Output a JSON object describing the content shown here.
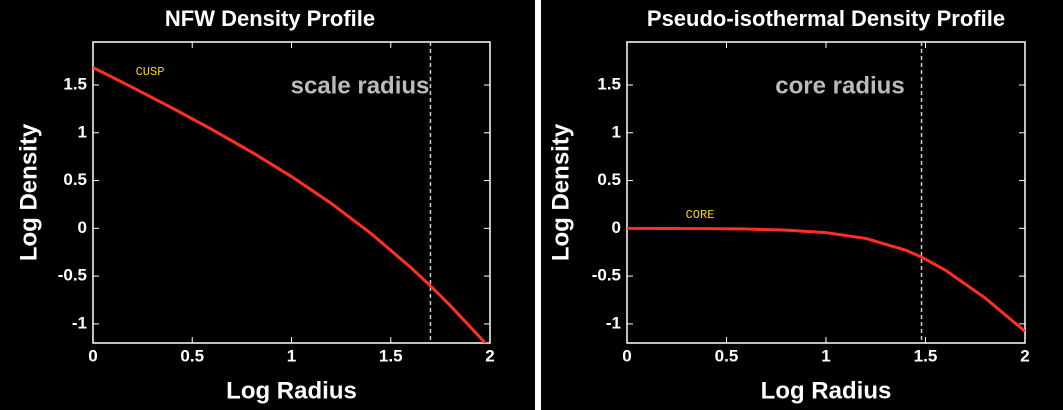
{
  "chart_data": [
    {
      "type": "line",
      "title": "NFW Density Profile",
      "x_label": "Log Radius",
      "y_label": "Log Density",
      "x": [
        0,
        0.2,
        0.4,
        0.6,
        0.8,
        1.0,
        1.2,
        1.4,
        1.6,
        1.7,
        1.8,
        2.0
      ],
      "series": [
        {
          "name": "NFW",
          "color": "#ff3020",
          "values": [
            1.683,
            1.473,
            1.258,
            1.034,
            0.797,
            0.542,
            0.261,
            -0.053,
            -0.408,
            -0.602,
            -0.808,
            -1.253
          ]
        }
      ],
      "xlim": [
        0,
        2
      ],
      "ylim": [
        -1.2,
        1.95
      ],
      "xticks": [
        0,
        0.5,
        1,
        1.5,
        2
      ],
      "yticks": [
        -1,
        -0.5,
        0,
        0.5,
        1,
        1.5
      ],
      "vline": 1.7,
      "vline_label": "scale radius",
      "note": "CUSP"
    },
    {
      "type": "line",
      "title": "Pseudo-isothermal Density Profile",
      "x_label": "Log Radius",
      "y_label": "Log Density",
      "x": [
        0,
        0.2,
        0.4,
        0.6,
        0.8,
        1.0,
        1.2,
        1.4,
        1.48,
        1.6,
        1.8,
        2.0
      ],
      "series": [
        {
          "name": "Pseudo-isothermal",
          "color": "#ff3020",
          "values": [
            -0.0005,
            -0.0012,
            -0.003,
            -0.0075,
            -0.0186,
            -0.0452,
            -0.1056,
            -0.2284,
            -0.301,
            -0.4374,
            -0.7295,
            -1.078
          ]
        }
      ],
      "xlim": [
        0,
        2
      ],
      "ylim": [
        -1.2,
        1.95
      ],
      "xticks": [
        0,
        0.5,
        1,
        1.5,
        2
      ],
      "yticks": [
        -1,
        -0.5,
        0,
        0.5,
        1,
        1.5
      ],
      "vline": 1.48,
      "vline_label": "core radius",
      "note": "CORE"
    }
  ]
}
